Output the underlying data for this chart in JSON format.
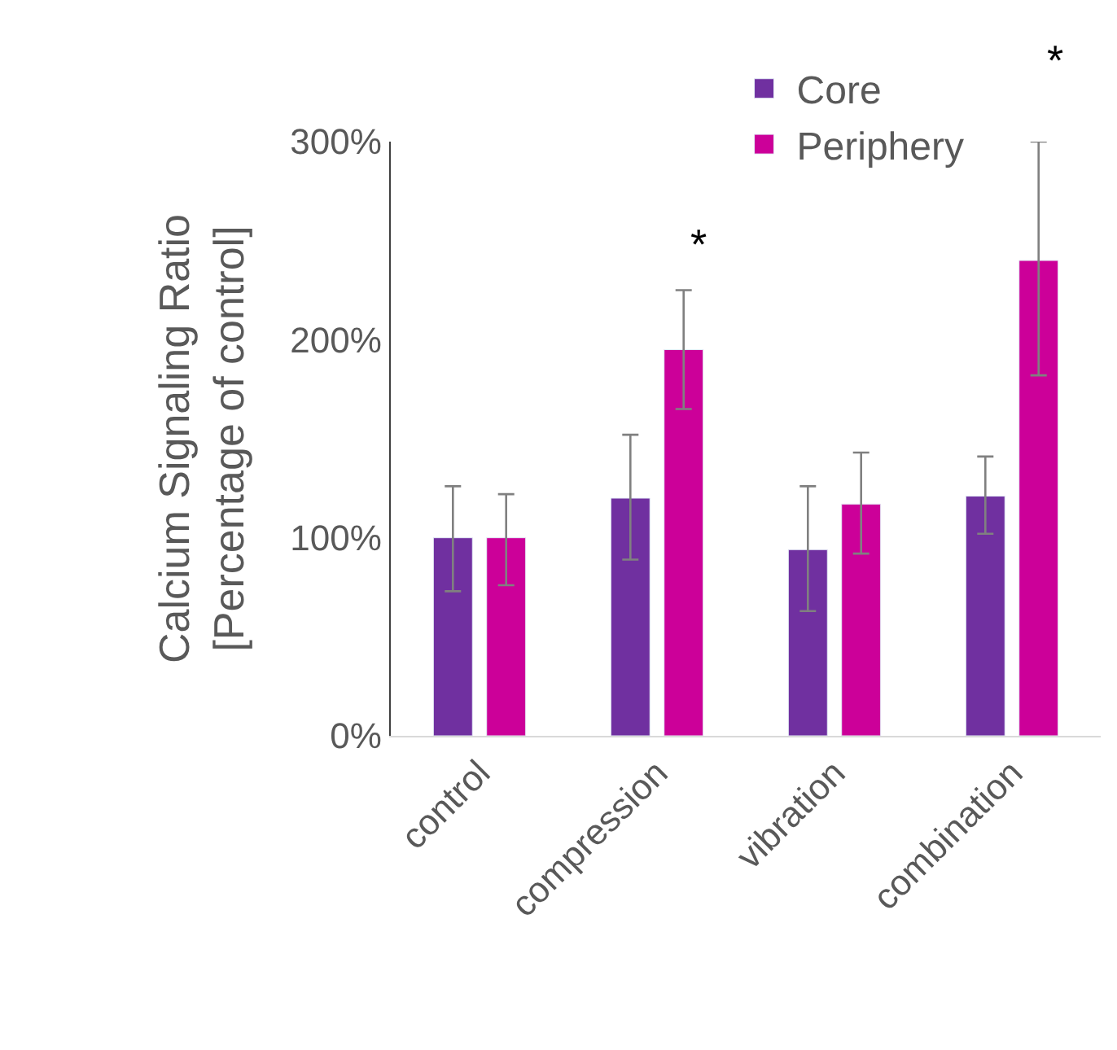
{
  "chart_data": {
    "type": "bar",
    "ylabel": "Calcium Signaling Ratio\n[Percentage of control]",
    "categories": [
      "control",
      "compression",
      "vibration",
      "combination"
    ],
    "series": [
      {
        "name": "Core",
        "color": "#7030a0",
        "values": [
          100,
          120,
          94,
          121
        ],
        "errors": [
          [
            73,
            126
          ],
          [
            89,
            152
          ],
          [
            63,
            126
          ],
          [
            102,
            141
          ]
        ]
      },
      {
        "name": "Periphery",
        "color": "#cc0099",
        "values": [
          100,
          195,
          117,
          240
        ],
        "errors": [
          [
            76,
            122
          ],
          [
            165,
            225
          ],
          [
            92,
            143
          ],
          [
            182,
            300
          ]
        ]
      }
    ],
    "ylim": [
      0,
      300
    ],
    "yticks": [
      {
        "value": 0,
        "label": "0%"
      },
      {
        "value": 100,
        "label": "100%"
      },
      {
        "value": 200,
        "label": "200%"
      },
      {
        "value": 300,
        "label": "300%"
      }
    ],
    "annotations": [
      "*",
      "*"
    ],
    "legend": "top right"
  }
}
